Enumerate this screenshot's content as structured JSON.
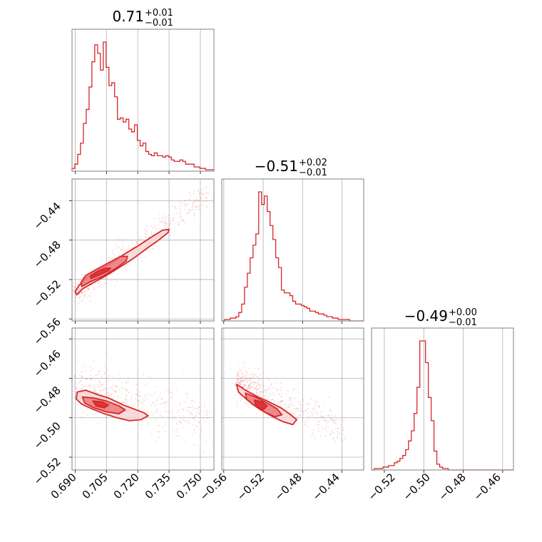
{
  "colors": {
    "series": "#d62728",
    "fill_dark": "#d62728",
    "fill_mid": "#eb7a7d",
    "fill_light": "#f7d0d1",
    "grid": "#b0b0b0",
    "frame": "#808080"
  },
  "chart_data": {
    "type": "corner",
    "grid": true,
    "parameters": [
      {
        "median": "0.71",
        "upper_err": "+0.01",
        "lower_err": "−0.01",
        "range": [
          0.6885,
          0.7565
        ],
        "ticks": [
          0.69,
          0.705,
          0.72,
          0.735,
          0.75
        ],
        "tick_labels": [
          "0.690",
          "0.705",
          "0.720",
          "0.735",
          "0.750"
        ],
        "hist_bin_start": 0.6885,
        "hist_bin_width": 0.00136,
        "hist_counts": [
          2,
          5,
          12,
          20,
          34,
          44,
          60,
          78,
          90,
          84,
          72,
          92,
          74,
          61,
          63,
          53,
          37,
          38,
          35,
          37,
          30,
          28,
          33,
          22,
          18,
          20,
          14,
          12,
          11,
          13,
          11,
          11,
          10,
          11,
          10,
          8,
          7,
          7,
          8,
          7,
          5,
          5,
          5,
          3,
          3,
          2,
          2,
          1,
          1,
          1
        ]
      },
      {
        "median": "−0.51",
        "upper_err": "+0.02",
        "lower_err": "−0.01",
        "range": [
          -0.562,
          -0.418
        ],
        "ticks": [
          -0.56,
          -0.52,
          -0.48,
          -0.44
        ],
        "tick_labels": [
          "−0.56",
          "−0.52",
          "−0.48",
          "−0.44"
        ],
        "hist_bin_start": -0.562,
        "hist_bin_width": 0.00288,
        "hist_counts": [
          0,
          1,
          1,
          2,
          2,
          3,
          6,
          12,
          24,
          34,
          45,
          54,
          62,
          92,
          83,
          89,
          78,
          68,
          58,
          45,
          38,
          22,
          20,
          20,
          18,
          14,
          12,
          12,
          11,
          10,
          9,
          7,
          7,
          6,
          5,
          5,
          4,
          3,
          3,
          2,
          2,
          1,
          1,
          1,
          1,
          0,
          0,
          0,
          0,
          0
        ]
      },
      {
        "median": "−0.49",
        "upper_err": "+0.00",
        "lower_err": "−0.01",
        "range": [
          -0.5265,
          -0.4545
        ],
        "ticks": [
          -0.52,
          -0.5,
          -0.48,
          -0.46
        ],
        "tick_labels": [
          "−0.52",
          "−0.50",
          "−0.48",
          "−0.46"
        ],
        "hist_bin_start": -0.5265,
        "hist_bin_width": 0.00144,
        "hist_counts": [
          0,
          1,
          1,
          1,
          2,
          2,
          3,
          3,
          5,
          6,
          8,
          10,
          14,
          20,
          27,
          39,
          57,
          89,
          89,
          74,
          50,
          34,
          13,
          4,
          2,
          1,
          1,
          0,
          0,
          0,
          0,
          0,
          0,
          0,
          0,
          0,
          0,
          0,
          0,
          0,
          0,
          0,
          0,
          0,
          0,
          0,
          0,
          0,
          0,
          0
        ]
      }
    ],
    "pairs": [
      {
        "x_param": 0,
        "y_param": 1,
        "points_line": {
          "x0": 0.6908,
          "y0": -0.5336,
          "x1": 0.7535,
          "y1": -0.4312
        },
        "point_spread": 0.005,
        "n_points": 520,
        "contours": [
          {
            "level": "outer",
            "points": [
              [
                0.6908,
                -0.5355
              ],
              [
                0.6935,
                -0.5295
              ],
              [
                0.698,
                -0.524
              ],
              [
                0.704,
                -0.517
              ],
              [
                0.711,
                -0.508
              ],
              [
                0.718,
                -0.4985
              ],
              [
                0.725,
                -0.4875
              ],
              [
                0.73,
                -0.48
              ],
              [
                0.7345,
                -0.4725
              ],
              [
                0.735,
                -0.469
              ],
              [
                0.7318,
                -0.47
              ],
              [
                0.7265,
                -0.477
              ],
              [
                0.72,
                -0.486
              ],
              [
                0.713,
                -0.495
              ],
              [
                0.707,
                -0.504
              ],
              [
                0.701,
                -0.511
              ],
              [
                0.6955,
                -0.5185
              ],
              [
                0.6918,
                -0.526
              ],
              [
                0.69,
                -0.5325
              ]
            ]
          },
          {
            "level": "mid",
            "points": [
              [
                0.6932,
                -0.527
              ],
              [
                0.6975,
                -0.522
              ],
              [
                0.7035,
                -0.5165
              ],
              [
                0.71,
                -0.508
              ],
              [
                0.7145,
                -0.501
              ],
              [
                0.715,
                -0.4965
              ],
              [
                0.7118,
                -0.4965
              ],
              [
                0.706,
                -0.503
              ],
              [
                0.7,
                -0.51
              ],
              [
                0.695,
                -0.516
              ],
              [
                0.6928,
                -0.523
              ]
            ]
          },
          {
            "level": "inner",
            "points": [
              [
                0.6975,
                -0.519
              ],
              [
                0.702,
                -0.515
              ],
              [
                0.706,
                -0.511
              ],
              [
                0.707,
                -0.5085
              ],
              [
                0.7045,
                -0.5085
              ],
              [
                0.7005,
                -0.512
              ],
              [
                0.6975,
                -0.516
              ]
            ]
          }
        ]
      },
      {
        "x_param": 0,
        "y_param": 2,
        "points_line": {
          "x0": 0.6915,
          "y0": -0.485,
          "x1": 0.752,
          "y1": -0.501
        },
        "point_spread": 0.006,
        "n_points": 520,
        "contours": [
          {
            "level": "outer",
            "points": [
              [
                0.691,
                -0.487
              ],
              [
                0.695,
                -0.486
              ],
              [
                0.7,
                -0.488
              ],
              [
                0.706,
                -0.49
              ],
              [
                0.713,
                -0.4935
              ],
              [
                0.718,
                -0.4955
              ],
              [
                0.723,
                -0.4975
              ],
              [
                0.725,
                -0.499
              ],
              [
                0.7215,
                -0.501
              ],
              [
                0.716,
                -0.5015
              ],
              [
                0.71,
                -0.5
              ],
              [
                0.704,
                -0.498
              ],
              [
                0.698,
                -0.4955
              ],
              [
                0.693,
                -0.493
              ],
              [
                0.6905,
                -0.4905
              ]
            ]
          },
          {
            "level": "mid",
            "points": [
              [
                0.6935,
                -0.4895
              ],
              [
                0.699,
                -0.49
              ],
              [
                0.705,
                -0.4915
              ],
              [
                0.711,
                -0.494
              ],
              [
                0.714,
                -0.496
              ],
              [
                0.711,
                -0.498
              ],
              [
                0.705,
                -0.497
              ],
              [
                0.699,
                -0.495
              ],
              [
                0.6945,
                -0.4925
              ]
            ]
          },
          {
            "level": "inner",
            "points": [
              [
                0.6985,
                -0.4915
              ],
              [
                0.703,
                -0.492
              ],
              [
                0.706,
                -0.4935
              ],
              [
                0.704,
                -0.495
              ],
              [
                0.7,
                -0.494
              ]
            ]
          }
        ]
      },
      {
        "x_param": 1,
        "y_param": 2,
        "points_line": {
          "x0": -0.546,
          "y0": -0.482,
          "x1": -0.438,
          "y1": -0.506
        },
        "point_spread": 0.0045,
        "n_points": 520,
        "contours": [
          {
            "level": "outer",
            "points": [
              [
                -0.547,
                -0.483
              ],
              [
                -0.538,
                -0.486
              ],
              [
                -0.527,
                -0.489
              ],
              [
                -0.514,
                -0.492
              ],
              [
                -0.502,
                -0.495
              ],
              [
                -0.492,
                -0.4985
              ],
              [
                -0.486,
                -0.501
              ],
              [
                -0.49,
                -0.5035
              ],
              [
                -0.5,
                -0.502
              ],
              [
                -0.512,
                -0.499
              ],
              [
                -0.524,
                -0.4955
              ],
              [
                -0.536,
                -0.491
              ],
              [
                -0.545,
                -0.487
              ]
            ]
          },
          {
            "level": "mid",
            "points": [
              [
                -0.538,
                -0.4875
              ],
              [
                -0.528,
                -0.4895
              ],
              [
                -0.516,
                -0.4925
              ],
              [
                -0.506,
                -0.4955
              ],
              [
                -0.501,
                -0.4985
              ],
              [
                -0.508,
                -0.4995
              ],
              [
                -0.519,
                -0.497
              ],
              [
                -0.53,
                -0.4935
              ],
              [
                -0.537,
                -0.4905
              ]
            ]
          },
          {
            "level": "inner",
            "points": [
              [
                -0.529,
                -0.491
              ],
              [
                -0.521,
                -0.492
              ],
              [
                -0.516,
                -0.494
              ],
              [
                -0.52,
                -0.496
              ],
              [
                -0.527,
                -0.4945
              ]
            ]
          }
        ]
      }
    ]
  }
}
